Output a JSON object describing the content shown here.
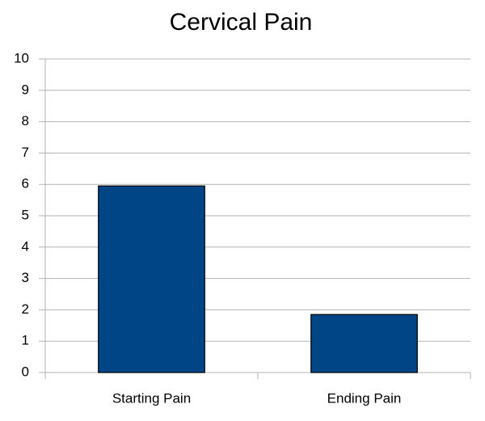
{
  "chart_data": {
    "type": "bar",
    "title": "Cervical Pain",
    "categories": [
      "Starting Pain",
      "Ending Pain"
    ],
    "values": [
      5.95,
      1.85
    ],
    "color": "#004586",
    "ylim": [
      0,
      10
    ],
    "yticks": [
      0,
      1,
      2,
      3,
      4,
      5,
      6,
      7,
      8,
      9,
      10
    ],
    "grid": true
  }
}
